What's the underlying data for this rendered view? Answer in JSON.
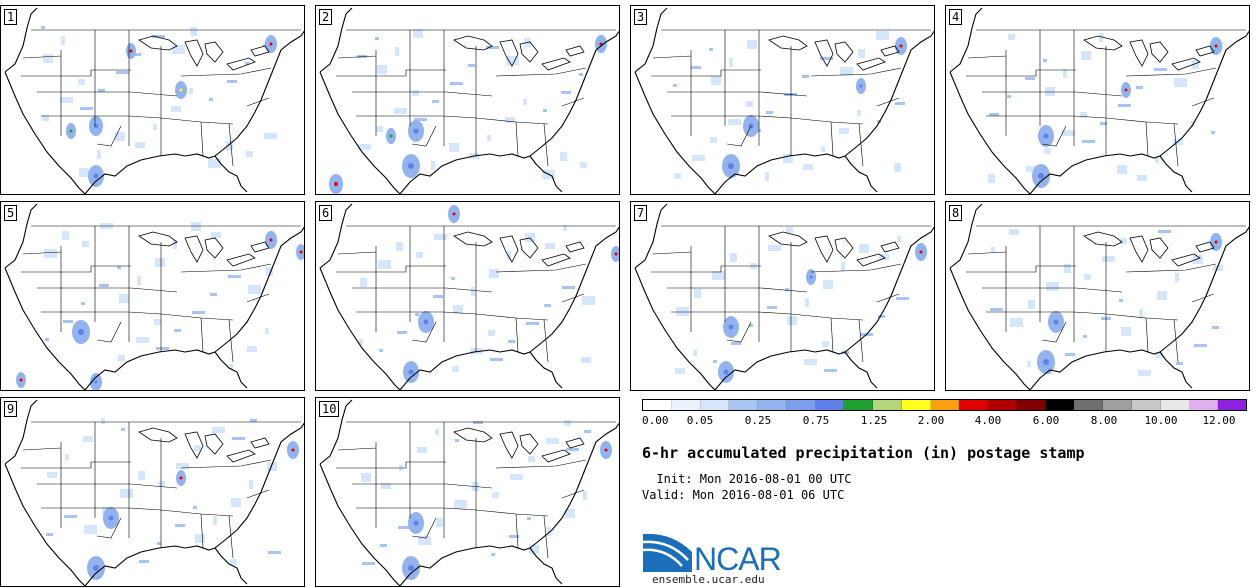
{
  "colorbar": {
    "colors": [
      "#ffffff",
      "#eaf2fc",
      "#d6e6fa",
      "#a8c4f2",
      "#93b3ef",
      "#7d9ded",
      "#5e80e8",
      "#20a030",
      "#b4d67a",
      "#ffff20",
      "#f8a010",
      "#e00000",
      "#b00000",
      "#800000",
      "#000000",
      "#707070",
      "#a0a0a0",
      "#c8c8c8",
      "#e8e8e8",
      "#e0b0f0",
      "#9020e0"
    ],
    "tick_labels": [
      "0.00",
      "0.05",
      "0.25",
      "0.75",
      "1.25",
      "2.00",
      "4.00",
      "6.00",
      "8.00",
      "10.00",
      "12.00"
    ]
  },
  "title": "6-hr accumulated precipitation (in) postage stamp",
  "init_line": "  Init: Mon 2016-08-01 00 UTC",
  "valid_line": "Valid: Mon 2016-08-01 06 UTC",
  "logo_text": "NCAR",
  "url": "ensemble.ucar.edu",
  "members": [
    {
      "label": "1"
    },
    {
      "label": "2"
    },
    {
      "label": "3"
    },
    {
      "label": "4"
    },
    {
      "label": "5"
    },
    {
      "label": "6"
    },
    {
      "label": "7"
    },
    {
      "label": "8"
    },
    {
      "label": "9"
    },
    {
      "label": "10"
    }
  ]
}
